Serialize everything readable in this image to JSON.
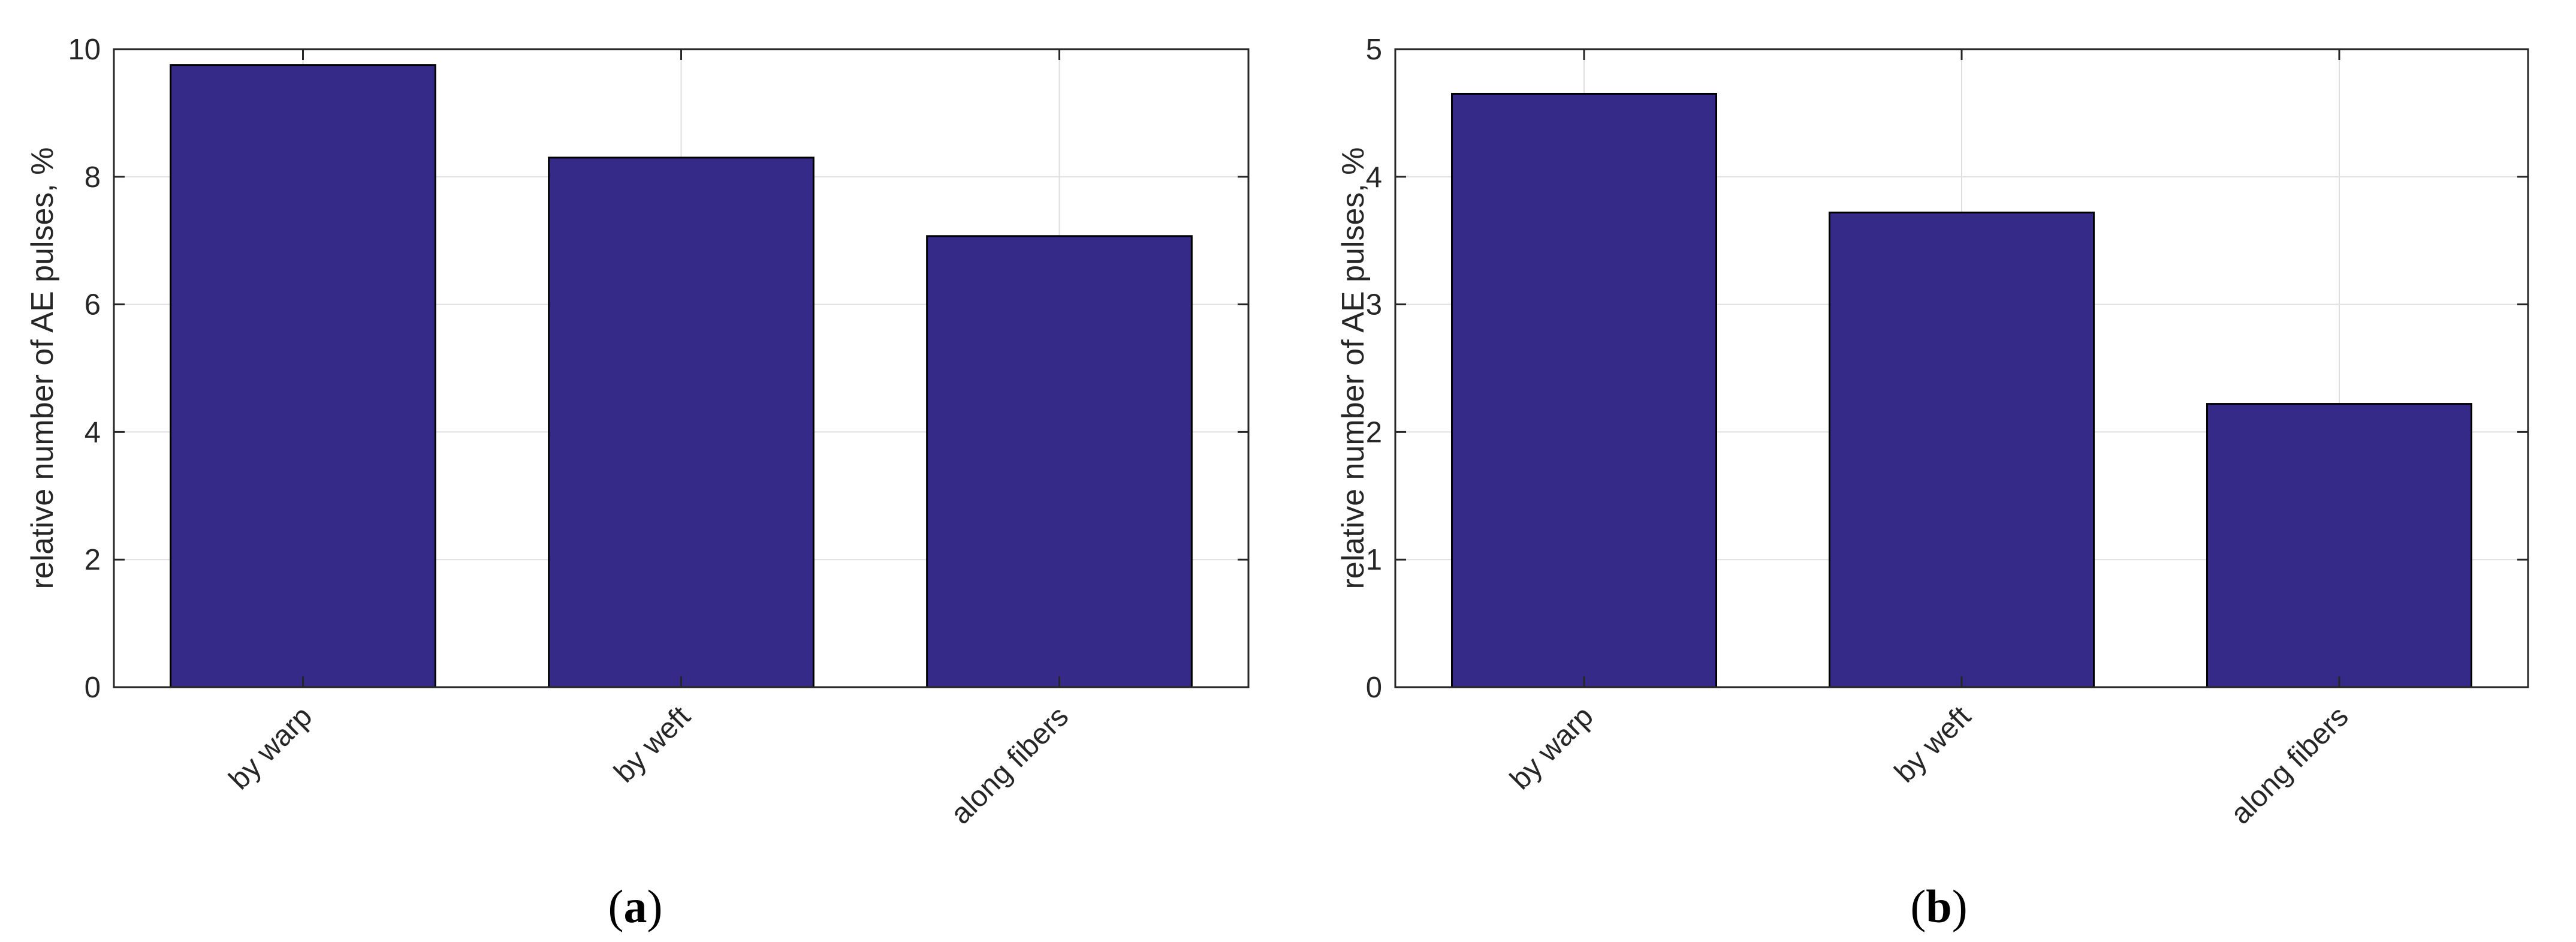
{
  "colors": {
    "bar_fill": "#352A87",
    "bar_stroke": "#000000",
    "grid": "#DFDFDF",
    "axis": "#262626"
  },
  "chart_data": [
    {
      "type": "bar",
      "panel_label": "a",
      "categories": [
        "by warp",
        "by weft",
        "along fibers"
      ],
      "values": [
        9.75,
        8.3,
        7.07
      ],
      "xlabel": "",
      "ylabel": "relative number of AE pulses, %",
      "ylim": [
        0,
        10
      ],
      "yticks": [
        0,
        2,
        4,
        6,
        8,
        10
      ],
      "grid": true
    },
    {
      "type": "bar",
      "panel_label": "b",
      "categories": [
        "by warp",
        "by weft",
        "along fibers"
      ],
      "values": [
        4.65,
        3.72,
        2.22
      ],
      "xlabel": "",
      "ylabel": "relative number of AE pulses, %",
      "ylim": [
        0,
        5
      ],
      "yticks": [
        0,
        1,
        2,
        3,
        4,
        5
      ],
      "grid": true
    }
  ]
}
